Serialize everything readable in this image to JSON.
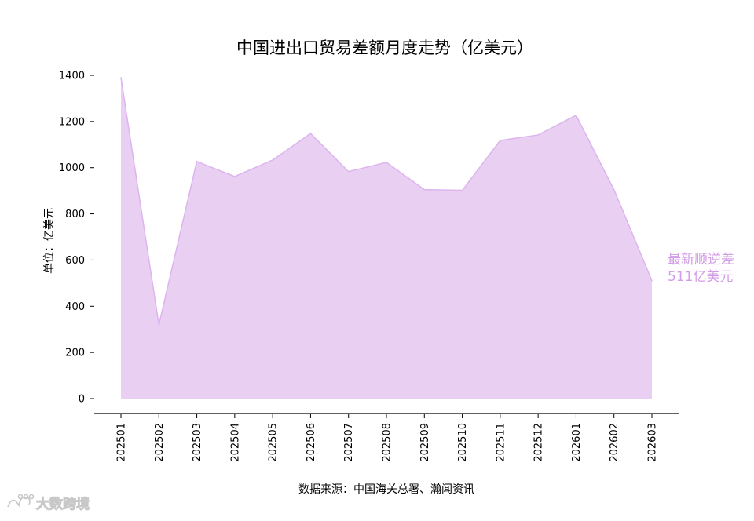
{
  "chart_data": {
    "type": "area",
    "title": "中国进出口贸易差额月度走势（亿美元）",
    "xlabel": "",
    "ylabel": "单位：亿美元",
    "categories": [
      "202501",
      "202502",
      "202503",
      "202504",
      "202505",
      "202506",
      "202507",
      "202508",
      "202509",
      "202510",
      "202511",
      "202512",
      "202601",
      "202602",
      "202603"
    ],
    "series": [
      {
        "values": [
          1390,
          320,
          1027,
          962,
          1033,
          1148,
          983,
          1023,
          905,
          902,
          1118,
          1142,
          1227,
          905,
          511
        ]
      }
    ],
    "ylim": [
      0,
      1400
    ],
    "yticks": [
      0,
      200,
      400,
      600,
      800,
      1000,
      1200,
      1400
    ],
    "grid": false,
    "legend": "none",
    "annotation": {
      "line1": "最新顺逆差",
      "line2": "511亿美元"
    },
    "source": "数据来源：中国海关总署、瀚闻资讯"
  },
  "colors": {
    "fill": "#e9d0f3",
    "stroke": "#dcb4ee",
    "annotation": "#d39ce6",
    "axis": "#000000"
  },
  "watermark": {
    "text": "大数跨境",
    "icon": "logo-icon"
  }
}
